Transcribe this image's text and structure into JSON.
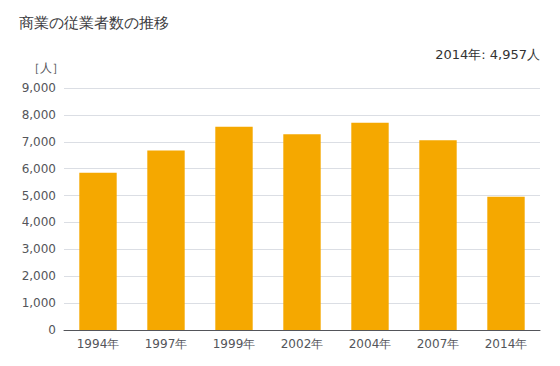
{
  "chart_data": {
    "type": "bar",
    "title": "商業の従業者数の推移",
    "ylabel": "［人］",
    "annotation": "2014年: 4,957人",
    "categories": [
      "1994年",
      "1997年",
      "1999年",
      "2002年",
      "2004年",
      "2007年",
      "2014年"
    ],
    "values": [
      5850,
      6680,
      7560,
      7280,
      7710,
      7060,
      4957
    ],
    "color": "#F5A800",
    "ylim": [
      0,
      9000
    ],
    "yticks": [
      0,
      {
        "value": 1000,
        "label": "1,000"
      },
      {
        "value": 2000,
        "label": "2,000"
      },
      {
        "value": 3000,
        "label": "3,000"
      },
      {
        "value": 4000,
        "label": "4,000"
      },
      {
        "value": 5000,
        "label": "5,000"
      },
      {
        "value": 6000,
        "label": "6,000"
      },
      {
        "value": 7000,
        "label": "7,000"
      },
      {
        "value": 8000,
        "label": "8,000"
      },
      {
        "value": 9000,
        "label": "9,000"
      }
    ],
    "grid": true
  }
}
